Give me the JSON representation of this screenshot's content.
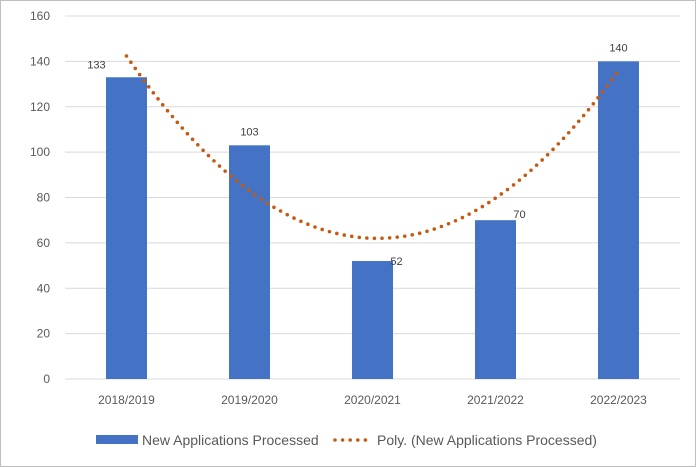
{
  "chart_data": {
    "type": "bar",
    "categories": [
      "2018/2019",
      "2019/2020",
      "2020/2021",
      "2021/2022",
      "2022/2023"
    ],
    "series": [
      {
        "name": "New Applications Processed",
        "type": "bar",
        "values": [
          133,
          103,
          52,
          70,
          140
        ],
        "color": "#4472C4"
      },
      {
        "name": "Poly. (New Applications Processed)",
        "type": "line",
        "style": "dotted",
        "trendline": "polynomial",
        "values": [
          142,
          84,
          61,
          80,
          136
        ],
        "color": "#C55A11"
      }
    ],
    "data_labels": [
      "133",
      "103",
      "52",
      "70",
      "140"
    ],
    "y_ticks": [
      "0",
      "20",
      "40",
      "60",
      "80",
      "100",
      "120",
      "140",
      "160"
    ],
    "ylim": [
      0,
      160
    ],
    "title": "",
    "xlabel": "",
    "ylabel": "",
    "grid": true,
    "legend_position": "bottom"
  }
}
